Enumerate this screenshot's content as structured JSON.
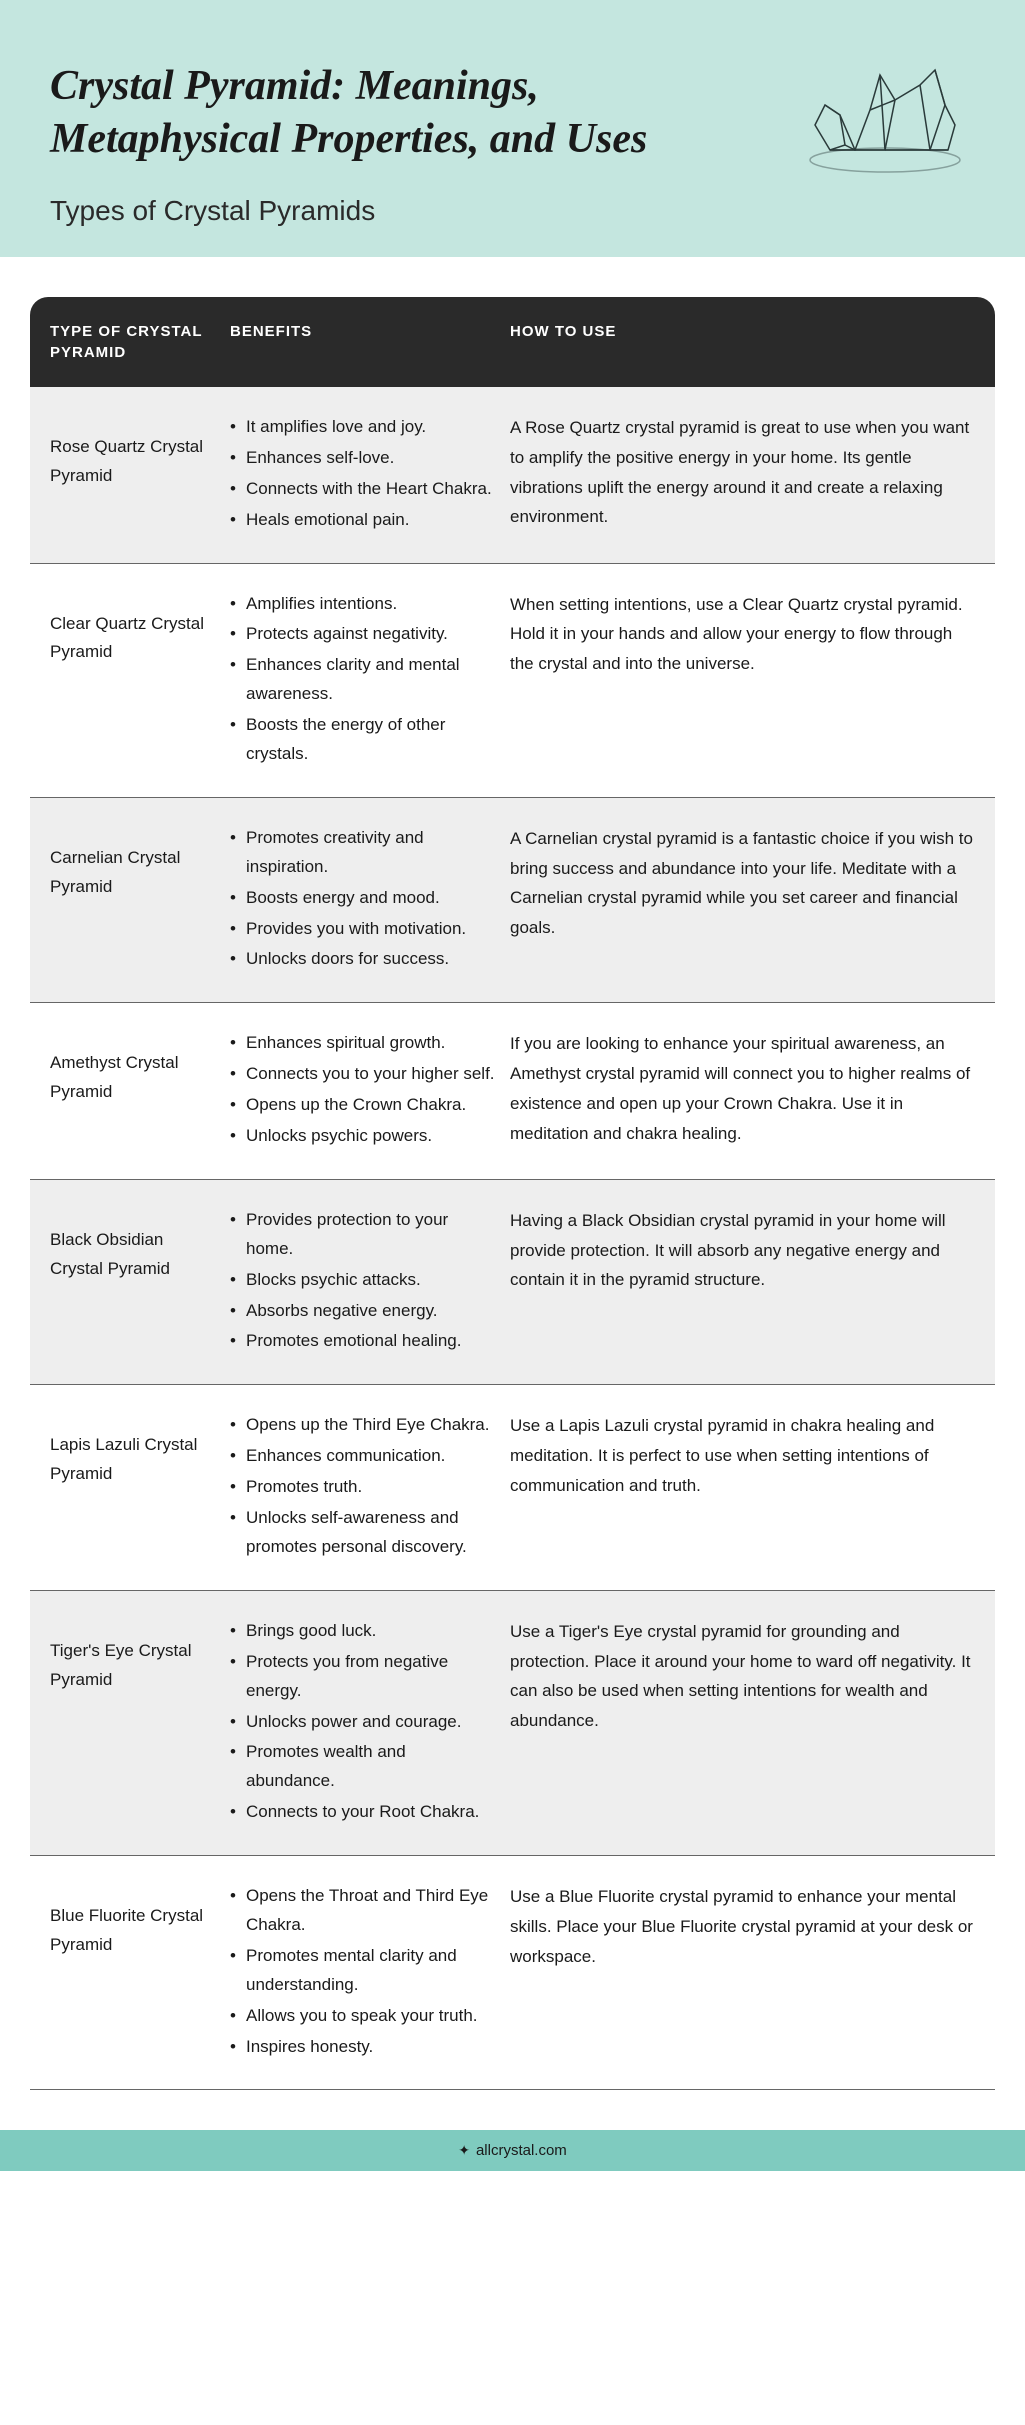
{
  "header": {
    "title": "Crystal Pyramid: Meanings, Metaphysical Properties, and Uses",
    "subtitle": "Types of Crystal Pyramids",
    "background_color": "#c4e6df",
    "title_color": "#1a1a1a",
    "title_fontsize": 42,
    "subtitle_fontsize": 28
  },
  "table": {
    "header_bg": "#2a2a2a",
    "header_text_color": "#ffffff",
    "row_alt_bg": "#eeeeee",
    "row_bg": "#ffffff",
    "border_color": "#666666",
    "columns": {
      "type": "TYPE OF CRYSTAL PYRAMID",
      "benefits": "BENEFITS",
      "howto": "HOW TO USE"
    },
    "rows": [
      {
        "type": "Rose Quartz Crystal Pyramid",
        "benefits": [
          "It amplifies love and joy.",
          "Enhances self-love.",
          "Connects with the Heart Chakra.",
          "Heals emotional pain."
        ],
        "howto": "A Rose Quartz crystal pyramid is great to use when you want to amplify the positive energy in your home. Its gentle vibrations uplift the energy around it and create a relaxing environment."
      },
      {
        "type": "Clear Quartz Crystal Pyramid",
        "benefits": [
          "Amplifies intentions.",
          "Protects against negativity.",
          "Enhances clarity and mental awareness.",
          "Boosts the energy of other crystals."
        ],
        "howto": "When setting intentions, use a Clear Quartz crystal pyramid. Hold it in your hands and allow your energy to flow through the crystal and into the universe."
      },
      {
        "type": "Carnelian Crystal Pyramid",
        "benefits": [
          "Promotes creativity and inspiration.",
          "Boosts energy and mood.",
          "Provides you with motivation.",
          "Unlocks doors for success."
        ],
        "howto": "A Carnelian crystal pyramid is a fantastic choice if you wish to bring success and abundance into your life. Meditate with a Carnelian crystal pyramid while you set career and financial goals."
      },
      {
        "type": "Amethyst Crystal Pyramid",
        "benefits": [
          "Enhances spiritual growth.",
          "Connects you to your higher self.",
          "Opens up the Crown Chakra.",
          "Unlocks psychic powers."
        ],
        "howto": "If you are looking to enhance your spiritual awareness, an Amethyst crystal pyramid will connect you to higher realms of existence and open up your Crown Chakra. Use it in meditation and chakra healing."
      },
      {
        "type": "Black Obsidian Crystal Pyramid",
        "benefits": [
          "Provides protection to your home.",
          "Blocks psychic attacks.",
          "Absorbs negative energy.",
          "Promotes emotional healing."
        ],
        "howto": "Having a Black Obsidian crystal pyramid in your home will provide protection. It will absorb any negative energy and contain it in the pyramid structure."
      },
      {
        "type": "Lapis Lazuli Crystal Pyramid",
        "benefits": [
          "Opens up the Third Eye Chakra.",
          "Enhances communication.",
          "Promotes truth.",
          "Unlocks self-awareness and promotes personal discovery."
        ],
        "howto": "Use a Lapis Lazuli crystal pyramid in chakra healing and meditation. It is perfect to use when setting intentions of communication and truth."
      },
      {
        "type": "Tiger's Eye Crystal Pyramid",
        "benefits": [
          "Brings good luck.",
          "Protects you from negative energy.",
          "Unlocks power and courage.",
          "Promotes wealth and abundance.",
          "Connects to your Root Chakra."
        ],
        "howto": "Use a Tiger's Eye crystal pyramid for grounding and protection. Place it around your home to ward off negativity. It can also be used when setting intentions for wealth and abundance."
      },
      {
        "type": "Blue Fluorite Crystal Pyramid",
        "benefits": [
          "Opens the Throat and Third Eye Chakra.",
          "Promotes mental clarity and understanding.",
          "Allows you to speak your truth.",
          "Inspires honesty."
        ],
        "howto": "Use a Blue Fluorite crystal pyramid to enhance your mental skills. Place your Blue Fluorite crystal pyramid at your desk or workspace."
      }
    ]
  },
  "footer": {
    "text": "allcrystal.com",
    "background_color": "#7fcbbf",
    "text_color": "#1a1a1a"
  }
}
